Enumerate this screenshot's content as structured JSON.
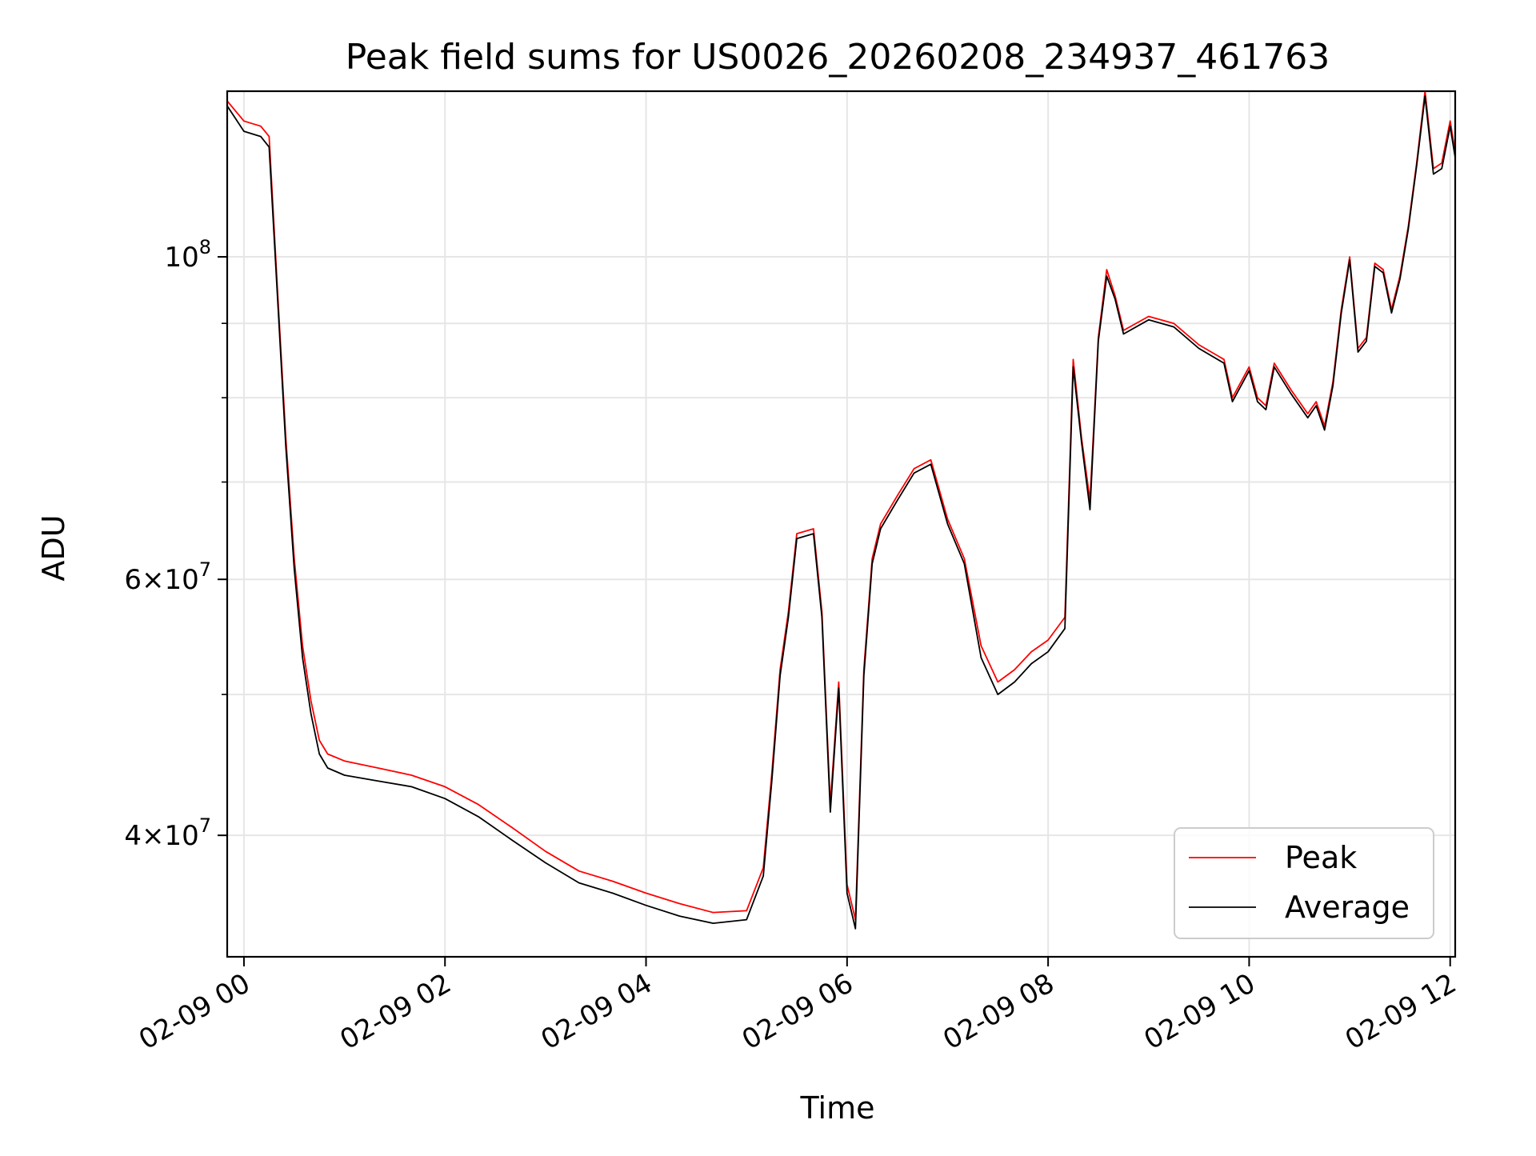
{
  "chart_data": {
    "type": "line",
    "title": "Peak field sums for US0026_20260208_234937_461763",
    "xlabel": "Time",
    "ylabel": "ADU",
    "yscale": "log",
    "grid": true,
    "legend_position": "bottom-right",
    "xlim": [
      "02-08 23:50",
      "02-09 12:03"
    ],
    "ylim": [
      33000000,
      130000000
    ],
    "x_ticks": [
      {
        "value": "02-09 00:00",
        "label": "02-09 00"
      },
      {
        "value": "02-09 02:00",
        "label": "02-09 02"
      },
      {
        "value": "02-09 04:00",
        "label": "02-09 04"
      },
      {
        "value": "02-09 06:00",
        "label": "02-09 06"
      },
      {
        "value": "02-09 08:00",
        "label": "02-09 08"
      },
      {
        "value": "02-09 10:00",
        "label": "02-09 10"
      },
      {
        "value": "02-09 12:00",
        "label": "02-09 12"
      }
    ],
    "y_ticks_major": [
      {
        "value": 40000000,
        "mant": "4",
        "exp": "7"
      },
      {
        "value": 60000000,
        "mant": "6",
        "exp": "7"
      },
      {
        "value": 100000000,
        "mant": "",
        "exp": "8"
      }
    ],
    "y_ticks_minor": [
      50000000,
      70000000,
      80000000,
      90000000
    ],
    "x": [
      "02-08 23:50",
      "02-09 00:00",
      "02-09 00:10",
      "02-09 00:15",
      "02-09 00:20",
      "02-09 00:25",
      "02-09 00:30",
      "02-09 00:35",
      "02-09 00:40",
      "02-09 00:45",
      "02-09 00:50",
      "02-09 01:00",
      "02-09 01:20",
      "02-09 01:40",
      "02-09 02:00",
      "02-09 02:20",
      "02-09 02:40",
      "02-09 03:00",
      "02-09 03:20",
      "02-09 03:40",
      "02-09 04:00",
      "02-09 04:20",
      "02-09 04:40",
      "02-09 05:00",
      "02-09 05:10",
      "02-09 05:15",
      "02-09 05:20",
      "02-09 05:25",
      "02-09 05:30",
      "02-09 05:40",
      "02-09 05:45",
      "02-09 05:50",
      "02-09 05:55",
      "02-09 06:00",
      "02-09 06:05",
      "02-09 06:10",
      "02-09 06:15",
      "02-09 06:20",
      "02-09 06:30",
      "02-09 06:40",
      "02-09 06:50",
      "02-09 07:00",
      "02-09 07:10",
      "02-09 07:20",
      "02-09 07:30",
      "02-09 07:40",
      "02-09 07:50",
      "02-09 08:00",
      "02-09 08:10",
      "02-09 08:15",
      "02-09 08:20",
      "02-09 08:25",
      "02-09 08:30",
      "02-09 08:35",
      "02-09 08:40",
      "02-09 08:45",
      "02-09 09:00",
      "02-09 09:15",
      "02-09 09:30",
      "02-09 09:45",
      "02-09 09:50",
      "02-09 10:00",
      "02-09 10:05",
      "02-09 10:10",
      "02-09 10:15",
      "02-09 10:25",
      "02-09 10:30",
      "02-09 10:35",
      "02-09 10:40",
      "02-09 10:45",
      "02-09 10:50",
      "02-09 10:55",
      "02-09 11:00",
      "02-09 11:05",
      "02-09 11:10",
      "02-09 11:15",
      "02-09 11:20",
      "02-09 11:25",
      "02-09 11:30",
      "02-09 11:35",
      "02-09 11:40",
      "02-09 11:45",
      "02-09 11:50",
      "02-09 11:55",
      "02-09 12:00",
      "02-09 12:03"
    ],
    "series": [
      {
        "name": "Peak",
        "color": "#ff0000",
        "values": [
          128000000,
          124000000,
          123000000,
          121000000,
          95000000,
          75000000,
          62000000,
          54000000,
          49500000,
          46500000,
          45500000,
          45000000,
          44500000,
          44000000,
          43200000,
          42000000,
          40500000,
          39000000,
          37800000,
          37200000,
          36500000,
          35900000,
          35400000,
          35500000,
          38000000,
          44000000,
          52000000,
          57000000,
          64500000,
          65000000,
          57000000,
          42000000,
          51000000,
          37000000,
          35000000,
          52000000,
          62000000,
          65500000,
          68500000,
          71500000,
          72500000,
          66000000,
          62000000,
          54000000,
          51000000,
          52000000,
          53500000,
          54500000,
          56500000,
          85000000,
          75000000,
          68000000,
          88000000,
          98000000,
          94000000,
          89000000,
          91000000,
          90000000,
          87000000,
          85000000,
          80000000,
          84000000,
          80000000,
          79000000,
          84500000,
          81000000,
          79500000,
          78000000,
          79500000,
          76500000,
          82000000,
          92000000,
          100000000,
          86500000,
          88000000,
          99000000,
          98000000,
          92000000,
          97000000,
          105000000,
          116000000,
          130000000,
          115000000,
          116000000,
          124000000,
          118000000
        ]
      },
      {
        "name": "Average",
        "color": "#000000",
        "values": [
          127000000,
          122000000,
          121000000,
          119000000,
          94000000,
          74000000,
          61000000,
          53000000,
          48500000,
          45500000,
          44500000,
          44000000,
          43600000,
          43200000,
          42400000,
          41200000,
          39700000,
          38300000,
          37100000,
          36500000,
          35800000,
          35200000,
          34800000,
          35000000,
          37500000,
          43500000,
          51500000,
          56500000,
          64000000,
          64500000,
          56500000,
          41500000,
          50500000,
          36500000,
          34500000,
          51500000,
          61500000,
          65000000,
          68000000,
          71000000,
          72000000,
          65500000,
          61500000,
          53000000,
          50000000,
          51000000,
          52500000,
          53500000,
          55500000,
          84000000,
          74500000,
          67000000,
          87500000,
          97000000,
          93500000,
          88500000,
          90500000,
          89500000,
          86500000,
          84500000,
          79500000,
          83500000,
          79500000,
          78500000,
          84000000,
          80500000,
          79000000,
          77500000,
          79000000,
          76000000,
          81500000,
          91500000,
          99500000,
          86000000,
          87500000,
          98500000,
          97500000,
          91500000,
          96500000,
          104500000,
          115500000,
          129000000,
          114000000,
          115000000,
          123000000,
          117000000
        ]
      }
    ]
  }
}
